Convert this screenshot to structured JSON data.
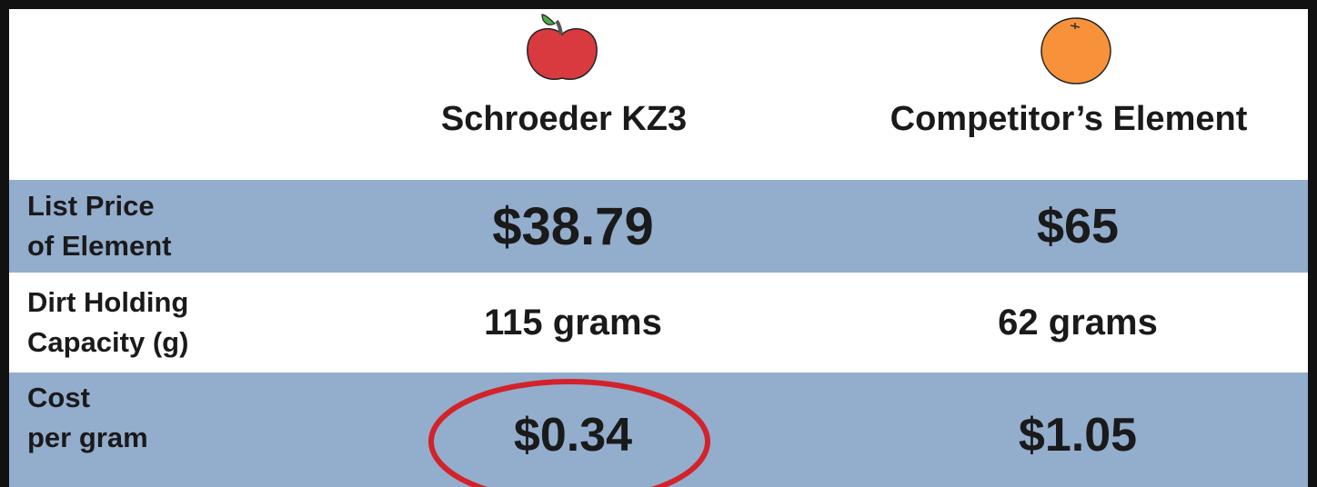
{
  "header": {
    "columns": [
      "Schroeder KZ3",
      "Competitor’s Element"
    ]
  },
  "rows": [
    {
      "label": [
        "List Price",
        "of Element"
      ],
      "values": [
        "$38.79",
        "$65"
      ]
    },
    {
      "label": [
        "Dirt Holding",
        "Capacity (g)"
      ],
      "values": [
        "115 grams",
        "62 grams"
      ]
    },
    {
      "label": [
        "Cost",
        "per gram"
      ],
      "values": [
        "$0.34",
        "$1.05"
      ]
    }
  ]
}
